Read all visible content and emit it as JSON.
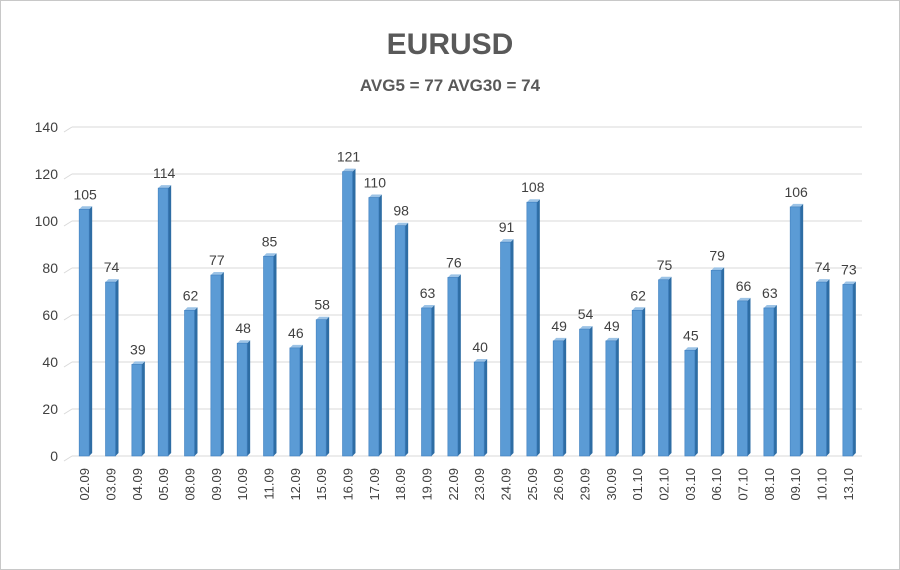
{
  "chart_data": {
    "type": "bar",
    "title": "EURUSD",
    "subtitle": "AVG5 = 77 AVG30 = 74",
    "xlabel": "",
    "ylabel": "",
    "ylim": [
      0,
      140
    ],
    "yticks": [
      0,
      20,
      40,
      60,
      80,
      100,
      120,
      140
    ],
    "grid": true,
    "categories": [
      "02.09",
      "03.09",
      "04.09",
      "05.09",
      "08.09",
      "09.09",
      "10.09",
      "11.09",
      "12.09",
      "15.09",
      "16.09",
      "17.09",
      "18.09",
      "19.09",
      "22.09",
      "23.09",
      "24.09",
      "25.09",
      "26.09",
      "29.09",
      "30.09",
      "01.10",
      "02.10",
      "03.10",
      "06.10",
      "07.10",
      "08.10",
      "09.10",
      "10.10",
      "13.10"
    ],
    "values": [
      105,
      74,
      39,
      114,
      62,
      77,
      48,
      85,
      46,
      58,
      121,
      110,
      98,
      63,
      76,
      40,
      91,
      108,
      49,
      54,
      49,
      62,
      75,
      45,
      79,
      66,
      63,
      106,
      74,
      73
    ],
    "colors": {
      "bar_front": "#5b9bd5",
      "bar_side": "#2e6da4",
      "grid": "#d9d9d9"
    }
  }
}
